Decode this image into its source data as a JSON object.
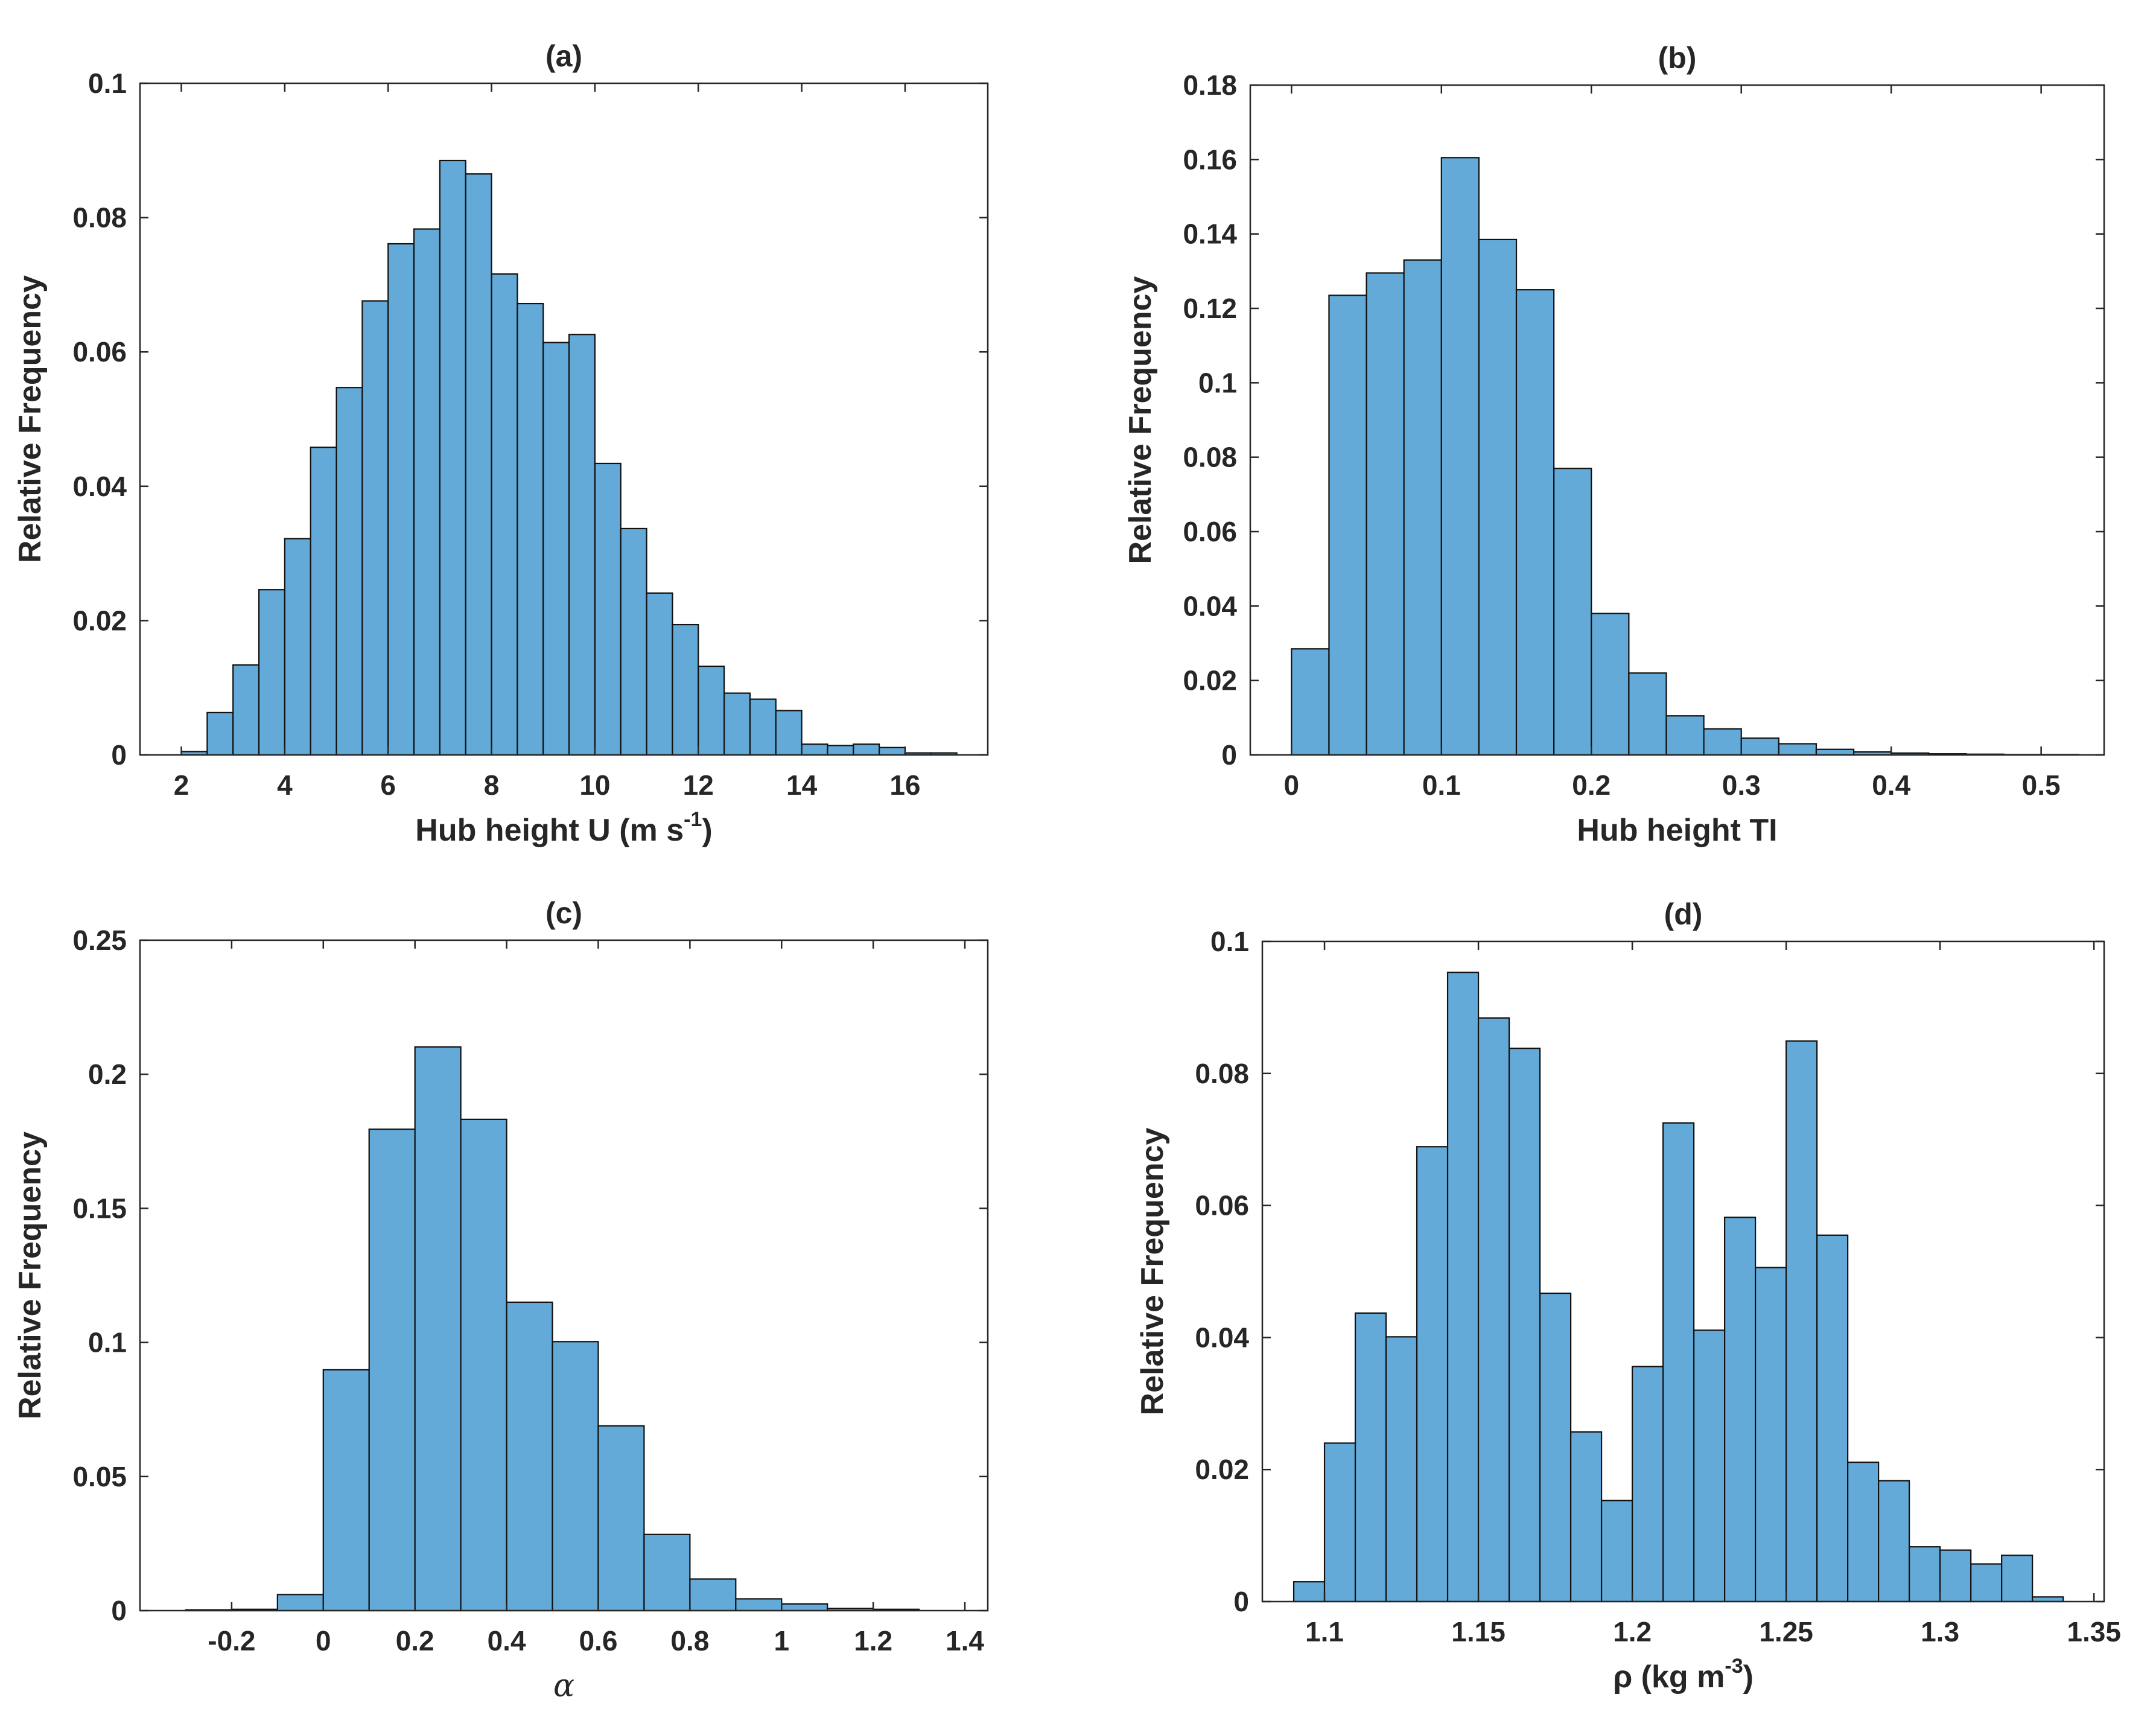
{
  "chart_data": [
    {
      "type": "bar",
      "title": "(a)",
      "xlabel": "Hub height U (m s",
      "xlabel_sup": "-1",
      "xlabel_end": ")",
      "ylabel": "Relative Frequency",
      "xlim": [
        1.2,
        17.6
      ],
      "ylim": [
        0,
        0.1
      ],
      "xticks": [
        2,
        4,
        6,
        8,
        10,
        12,
        14,
        16
      ],
      "yticks": [
        0,
        0.02,
        0.04,
        0.06,
        0.08,
        0.1
      ],
      "yticklabels": [
        "0",
        "0.02",
        "0.04",
        "0.06",
        "0.08",
        "0.1"
      ],
      "bin_edges": [
        2,
        2.5,
        3,
        3.5,
        4,
        4.5,
        5,
        5.5,
        6,
        6.5,
        7,
        7.5,
        8,
        8.5,
        9,
        9.5,
        10,
        10.5,
        11,
        11.5,
        12,
        12.5,
        13,
        13.5,
        14,
        14.5,
        15,
        15.5,
        16,
        16.5,
        17
      ],
      "values": [
        0.0005,
        0.0063,
        0.0134,
        0.0246,
        0.0322,
        0.0458,
        0.0547,
        0.0676,
        0.0761,
        0.0783,
        0.0885,
        0.0865,
        0.0716,
        0.0672,
        0.0614,
        0.0626,
        0.0434,
        0.0337,
        0.0241,
        0.0194,
        0.0132,
        0.0092,
        0.0083,
        0.0066,
        0.0016,
        0.0014,
        0.0016,
        0.0011,
        0.0003,
        0.0003
      ]
    },
    {
      "type": "bar",
      "title": "(b)",
      "xlabel": "Hub height TI",
      "ylabel": "Relative Frequency",
      "xlim": [
        -0.0275,
        0.542
      ],
      "ylim": [
        0,
        0.18
      ],
      "xticks": [
        0,
        0.1,
        0.2,
        0.3,
        0.4,
        0.5
      ],
      "xticklabels": [
        "0",
        "0.1",
        "0.2",
        "0.3",
        "0.4",
        "0.5"
      ],
      "yticks": [
        0,
        0.02,
        0.04,
        0.06,
        0.08,
        0.1,
        0.12,
        0.14,
        0.16,
        0.18
      ],
      "yticklabels": [
        "0",
        "0.02",
        "0.04",
        "0.06",
        "0.08",
        "0.1",
        "0.12",
        "0.14",
        "0.16",
        "0.18"
      ],
      "bin_edges": [
        0,
        0.025,
        0.05,
        0.075,
        0.1,
        0.125,
        0.15,
        0.175,
        0.2,
        0.225,
        0.25,
        0.275,
        0.3,
        0.325,
        0.35,
        0.375,
        0.4,
        0.425,
        0.45,
        0.475,
        0.5,
        0.525
      ],
      "values": [
        0.0285,
        0.1235,
        0.1295,
        0.133,
        0.1605,
        0.1385,
        0.125,
        0.077,
        0.038,
        0.022,
        0.0105,
        0.007,
        0.0045,
        0.003,
        0.0015,
        0.0008,
        0.0005,
        0.0003,
        0.0002,
        0.0001,
        0.0001
      ]
    },
    {
      "type": "bar",
      "title": "(c)",
      "xlabel": "α",
      "ylabel": "Relative Frequency",
      "xlim": [
        -0.4,
        1.45
      ],
      "ylim": [
        0,
        0.25
      ],
      "xticks": [
        -0.2,
        0,
        0.2,
        0.4,
        0.6,
        0.8,
        1,
        1.2,
        1.4
      ],
      "xticklabels": [
        "-0.2",
        "0",
        "0.2",
        "0.4",
        "0.6",
        "0.8",
        "1",
        "1.2",
        "1.4"
      ],
      "yticks": [
        0,
        0.05,
        0.1,
        0.15,
        0.2,
        0.25
      ],
      "yticklabels": [
        "0",
        "0.05",
        "0.1",
        "0.15",
        "0.2",
        "0.25"
      ],
      "bin_edges": [
        -0.3,
        -0.2,
        -0.1,
        0,
        0.1,
        0.2,
        0.3,
        0.4,
        0.5,
        0.6,
        0.7,
        0.8,
        0.9,
        1,
        1.1,
        1.2,
        1.3
      ],
      "values": [
        0.0003,
        0.0005,
        0.006,
        0.0898,
        0.1795,
        0.2102,
        0.1832,
        0.115,
        0.1003,
        0.0689,
        0.0284,
        0.0118,
        0.0044,
        0.0025,
        0.0008,
        0.0005
      ]
    },
    {
      "type": "bar",
      "title": "(d)",
      "xlabel": "ρ (kg m",
      "xlabel_sup": "-3",
      "xlabel_end": ")",
      "ylabel": "Relative Frequency",
      "xlim": [
        1.0798,
        1.3533
      ],
      "ylim": [
        0,
        0.1
      ],
      "xticks": [
        1.1,
        1.15,
        1.2,
        1.25,
        1.3,
        1.35
      ],
      "xticklabels": [
        "1.1",
        "1.15",
        "1.2",
        "1.25",
        "1.3",
        "1.35"
      ],
      "yticks": [
        0,
        0.02,
        0.04,
        0.06,
        0.08,
        0.1
      ],
      "yticklabels": [
        "0",
        "0.02",
        "0.04",
        "0.06",
        "0.08",
        "0.1"
      ],
      "bin_edges": [
        1.09,
        1.1,
        1.11,
        1.12,
        1.13,
        1.14,
        1.15,
        1.16,
        1.17,
        1.18,
        1.19,
        1.2,
        1.21,
        1.22,
        1.23,
        1.24,
        1.25,
        1.26,
        1.27,
        1.28,
        1.29,
        1.3,
        1.31,
        1.32,
        1.33,
        1.34
      ],
      "values": [
        0.003,
        0.024,
        0.0437,
        0.0401,
        0.0689,
        0.0953,
        0.0884,
        0.0838,
        0.0467,
        0.0257,
        0.0153,
        0.0356,
        0.0725,
        0.0411,
        0.0582,
        0.0506,
        0.0849,
        0.0555,
        0.0211,
        0.0183,
        0.0083,
        0.0078,
        0.0057,
        0.007,
        0.0007
      ]
    }
  ]
}
